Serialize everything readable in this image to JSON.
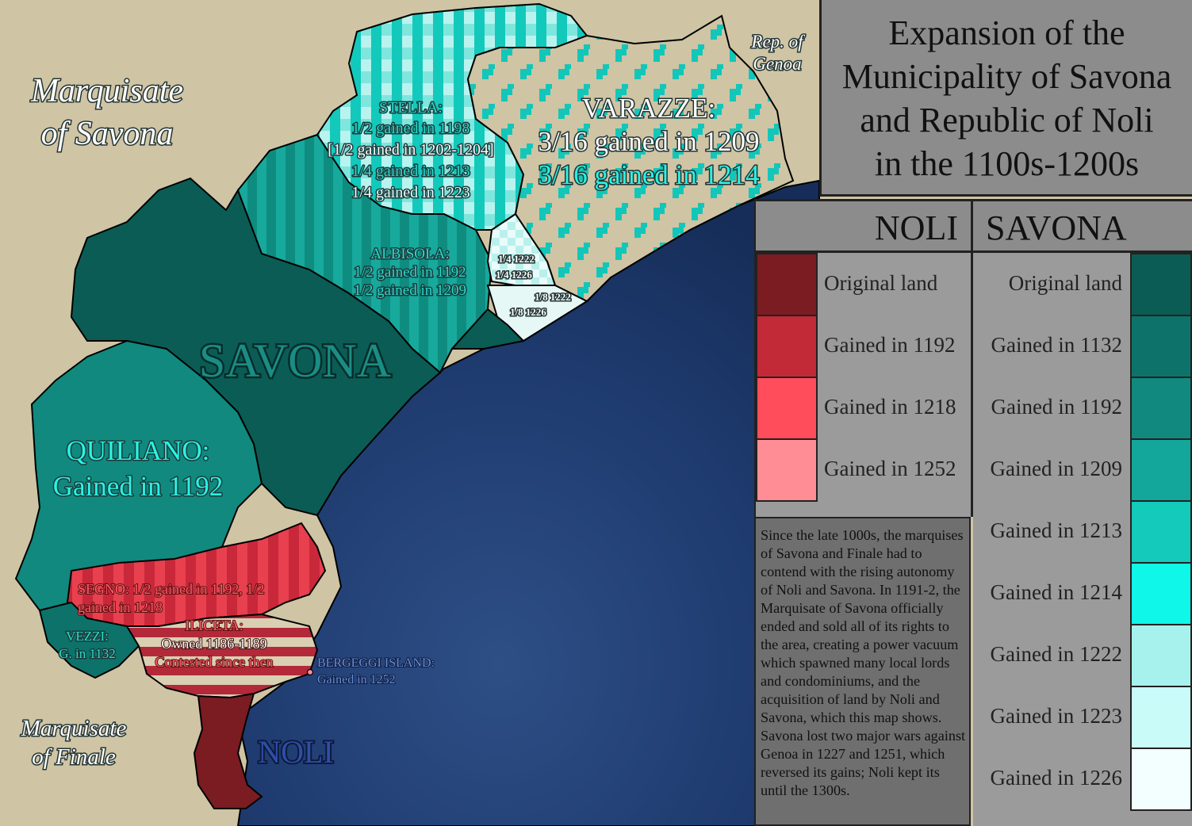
{
  "title_lines": [
    "Expansion of the",
    "Municipality of Savona",
    "and Republic of Noli",
    "in the 1100s-1200s"
  ],
  "neighbors": {
    "marquisate_savona": [
      "Marquisate",
      "of Savona"
    ],
    "marquisate_finale": [
      "Marquisate",
      "of Finale"
    ],
    "genoa": [
      "Rep. of",
      "Genoa"
    ]
  },
  "cities": {
    "savona": "SAVONA",
    "noli": "NOLI"
  },
  "regions": {
    "stella": [
      "STELLA:",
      "1/2 gained in 1198",
      "[1/2 gained in 1202-1204]",
      "1/4 gained in 1213",
      "1/4 gained in 1223"
    ],
    "varazze": [
      "VARAZZE:",
      "3/16 gained in 1209",
      "3/16 gained in 1214"
    ],
    "albisola": [
      "ALBISOLA:",
      "1/2 gained in 1192",
      "1/2 gained in 1209"
    ],
    "celle_a": [
      "1/4 1222",
      "1/4 1226"
    ],
    "celle_b": [
      "1/8 1222",
      "1/8 1226"
    ],
    "quiliano": [
      "QUILIANO:",
      "Gained in 1192"
    ],
    "segno": [
      "SEGNO: 1/2 gained in 1192, 1/2",
      "gained in 1218"
    ],
    "vezzi": [
      "VEZZI:",
      "G. in 1132"
    ],
    "iliceta": [
      "ILICETA:",
      "Owned 1186-1189",
      "Contested since then"
    ],
    "bergeggi": [
      "BERGEGGI ISLAND:",
      "Gained in 1252"
    ]
  },
  "legend": {
    "noli_header": "NOLI",
    "savona_header": "SAVONA",
    "noli_items": [
      {
        "label": "Original land",
        "color": "#7a1c22"
      },
      {
        "label": "Gained in 1192",
        "color": "#c22a38"
      },
      {
        "label": "Gained in 1218",
        "color": "#ff4d5c"
      },
      {
        "label": "Gained in 1252",
        "color": "#ff8d95"
      }
    ],
    "savona_items": [
      {
        "label": "Original land",
        "color": "#0b5c55"
      },
      {
        "label": "Gained in 1132",
        "color": "#0d736a"
      },
      {
        "label": "Gained in 1192",
        "color": "#11897e"
      },
      {
        "label": "Gained in 1209",
        "color": "#13a69a"
      },
      {
        "label": "Gained in 1213",
        "color": "#13cabb"
      },
      {
        "label": "Gained in 1214",
        "color": "#0ff7e8"
      },
      {
        "label": "Gained in 1222",
        "color": "#a8f2ee"
      },
      {
        "label": "Gained in 1223",
        "color": "#c9fbf9"
      },
      {
        "label": "Gained in 1226",
        "color": "#f2fffe"
      }
    ]
  },
  "note": "Since the late 1000s, the marquises of Savona and Finale had to contend with the rising autonomy of Noli and Savona. In 1191-2, the Marquisate of Savona officially ended and sold all of its rights to the area, creating a power vacuum which spawned many local lords and condominiums, and the acquisition of land by Noli and Savona, which this map shows. Savona lost two major wars against Genoa in 1227 and 1251, which reversed its gains; Noli kept its until the 1300s."
}
